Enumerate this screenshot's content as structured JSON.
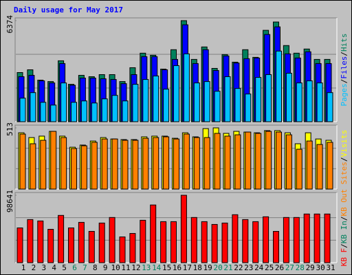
{
  "chart_data": [
    {
      "type": "bar",
      "title": "Daily usage for May 2017",
      "categories": [
        "1",
        "2",
        "3",
        "4",
        "5",
        "6",
        "7",
        "8",
        "9",
        "10",
        "11",
        "12",
        "13",
        "14",
        "15",
        "16",
        "17",
        "18",
        "19",
        "20",
        "21",
        "22",
        "23",
        "24",
        "25",
        "26",
        "27",
        "28",
        "29",
        "30",
        "31"
      ],
      "label_colors": [
        "#000000",
        "#000000",
        "#000000",
        "#000000",
        "#000000",
        "#00805c",
        "#00805c",
        "#000000",
        "#000000",
        "#000000",
        "#000000",
        "#000000",
        "#00805c",
        "#00805c",
        "#000000",
        "#000000",
        "#000000",
        "#000000",
        "#000000",
        "#00805c",
        "#00805c",
        "#000000",
        "#000000",
        "#000000",
        "#000000",
        "#000000",
        "#00805c",
        "#00805c",
        "#000000",
        "#000000",
        "#000000"
      ],
      "legend_separator": "/",
      "ylim": [
        0,
        6374
      ],
      "yticks": [
        6374
      ],
      "series": [
        {
          "name": "Hits",
          "color": "#00805c",
          "values": [
            3100,
            3274,
            2620,
            2532,
            3842,
            2358,
            2925,
            2838,
            2969,
            2969,
            2532,
            3405,
            4322,
            4191,
            3318,
            4541,
            6374,
            3929,
            4715,
            3362,
            4235,
            3755,
            4541,
            4060,
            5763,
            6287,
            4803,
            4322,
            4584,
            3929,
            3929
          ]
        },
        {
          "name": "Files",
          "color": "#0000ff",
          "values": [
            2838,
            2925,
            2576,
            2445,
            3667,
            2300,
            2751,
            2751,
            2707,
            2663,
            2401,
            2969,
            4104,
            4104,
            3274,
            3929,
            6112,
            3667,
            4541,
            3231,
            4148,
            3700,
            3973,
            4017,
            5501,
            5981,
            4279,
            4017,
            4410,
            3667,
            3667
          ]
        },
        {
          "name": "Pages",
          "color": "#00c0ff",
          "values": [
            1484,
            1834,
            1222,
            1048,
            2445,
            1222,
            1310,
            1179,
            1441,
            1659,
            1310,
            2358,
            2663,
            2882,
            2052,
            3536,
            4279,
            2445,
            2532,
            1921,
            2838,
            2096,
            1746,
            2794,
            2969,
            4453,
            3056,
            2445,
            2576,
            2445,
            1834
          ]
        }
      ]
    },
    {
      "type": "bar",
      "ylim": [
        0,
        513
      ],
      "yticks": [
        513
      ],
      "series": [
        {
          "name": "Visits",
          "color": "#ffff00",
          "values": [
            472,
            432,
            444,
            484,
            444,
            351,
            369,
            403,
            432,
            420,
            415,
            415,
            438,
            444,
            444,
            426,
            472,
            438,
            507,
            513,
            467,
            484,
            478,
            472,
            490,
            490,
            472,
            380,
            472,
            420,
            409
          ]
        },
        {
          "name": "Sites",
          "color": "#ff8000",
          "values": [
            461,
            380,
            409,
            484,
            432,
            340,
            363,
            392,
            420,
            420,
            409,
            409,
            426,
            432,
            438,
            420,
            461,
            432,
            432,
            467,
            444,
            455,
            478,
            467,
            484,
            478,
            455,
            334,
            403,
            374,
            392
          ]
        }
      ]
    },
    {
      "type": "bar",
      "ylim": [
        0,
        98641
      ],
      "yticks": [
        98641
      ],
      "series": [
        {
          "name": "KB F",
          "color": "#ff0000",
          "values": [
            50850,
            63054,
            61020,
            48816,
            69156,
            50850,
            58986,
            45765,
            57969,
            66105,
            37629,
            42714,
            62037,
            84411,
            60003,
            60003,
            98641,
            66105,
            60003,
            55935,
            57969,
            70173,
            63054,
            60003,
            67122,
            45765,
            66105,
            66105,
            71190,
            71190,
            71190
          ]
        }
      ],
      "legend_only": [
        {
          "name": "KB In",
          "color": "#00805c"
        },
        {
          "name": "KB Out",
          "color": "#ff8000"
        }
      ]
    }
  ]
}
